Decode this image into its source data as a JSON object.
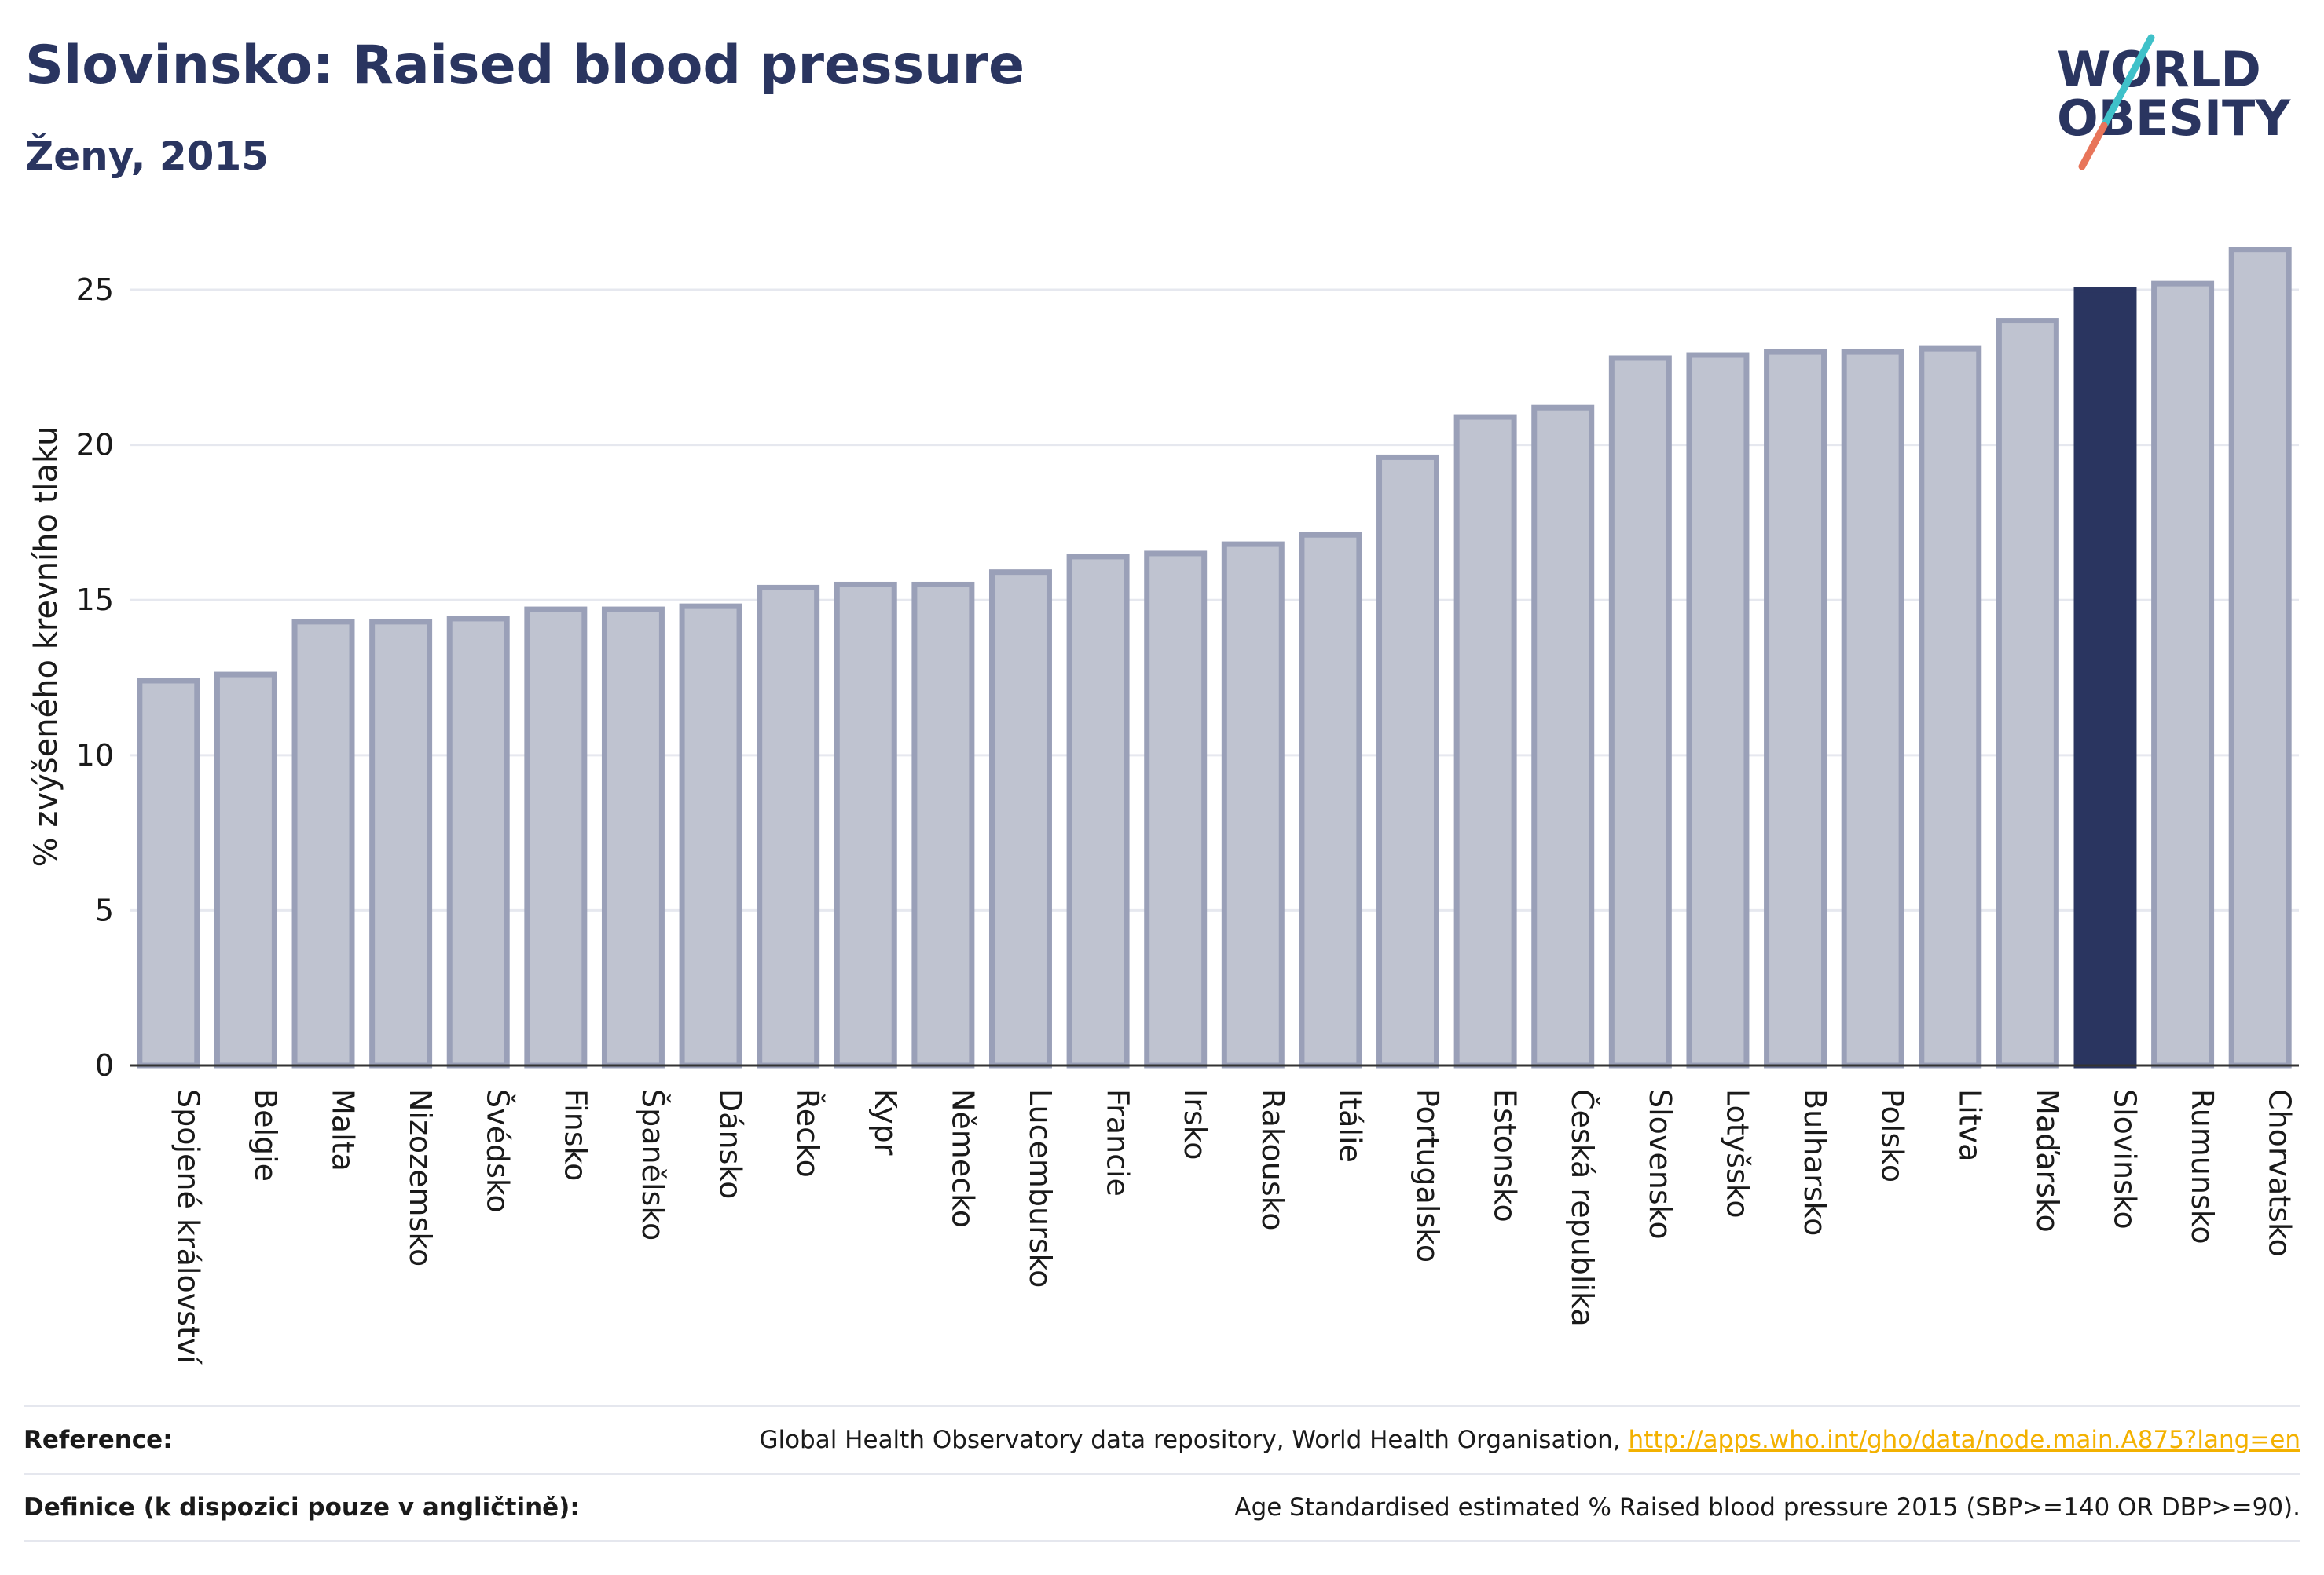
{
  "header": {
    "title": "Slovinsko: Raised blood pressure",
    "subtitle": "Ženy, 2015"
  },
  "logo": {
    "line1": "WORLD",
    "line2": "OBESITY"
  },
  "colors": {
    "highlight": "#2a3560",
    "bar_fill": "#bfc3d0",
    "bar_stroke": "#9aa0b8",
    "grid": "#e6e8ef",
    "link": "#f3b100"
  },
  "chart_data": {
    "type": "bar",
    "categories": [
      "Spojené království",
      "Belgie",
      "Malta",
      "Nizozemsko",
      "Švédsko",
      "Finsko",
      "Španělsko",
      "Dánsko",
      "Řecko",
      "Kypr",
      "Německo",
      "Lucembursko",
      "Francie",
      "Irsko",
      "Rakousko",
      "Itálie",
      "Portugalsko",
      "Estonsko",
      "Česká republika",
      "Slovensko",
      "Lotyšsko",
      "Bulharsko",
      "Polsko",
      "Litva",
      "Maďarsko",
      "Slovinsko",
      "Rumunsko",
      "Chorvatsko"
    ],
    "values": [
      12.4,
      12.6,
      14.3,
      14.3,
      14.4,
      14.7,
      14.7,
      14.8,
      15.4,
      15.5,
      15.5,
      15.9,
      16.4,
      16.5,
      16.8,
      17.1,
      19.6,
      20.9,
      21.2,
      22.8,
      22.9,
      23.0,
      23.0,
      23.1,
      24.0,
      25.0,
      25.2,
      26.3
    ],
    "highlight": "Slovinsko",
    "ylabel": "% zvýšeného krevního tlaku",
    "ylim": [
      0,
      27
    ],
    "yticks": [
      0,
      5,
      10,
      15,
      20,
      25
    ],
    "grid": true
  },
  "footer": {
    "reference_label": "Reference:",
    "reference_text": "Global Health Observatory data repository, World Health Organisation, ",
    "reference_link": "http://apps.who.int/gho/data/node.main.A875?lang=en",
    "definition_label": "Definice (k dispozici pouze v angličtině):",
    "definition_text": "Age Standardised estimated % Raised blood pressure 2015 (SBP>=140 OR DBP>=90)."
  }
}
